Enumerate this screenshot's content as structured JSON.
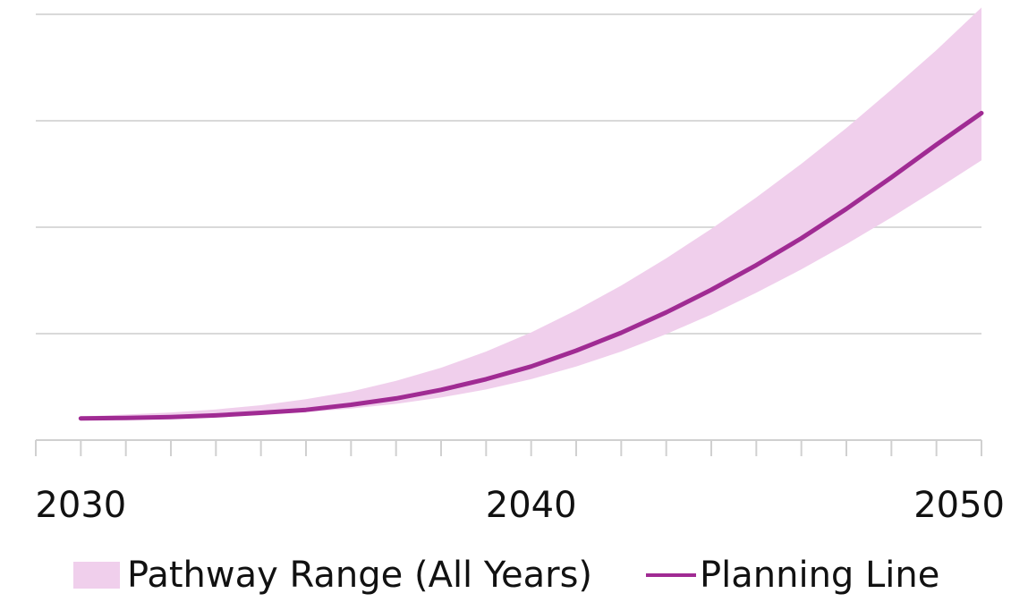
{
  "chart_data": {
    "type": "area",
    "title": "",
    "xlabel": "",
    "ylabel": "",
    "xlim": [
      2029,
      2050
    ],
    "ylim": [
      0,
      100
    ],
    "grid": true,
    "x_ticks": [
      2030,
      2040,
      2050
    ],
    "legend_position": "bottom",
    "x": [
      2030,
      2031,
      2032,
      2033,
      2034,
      2035,
      2036,
      2037,
      2038,
      2039,
      2040,
      2041,
      2042,
      2043,
      2044,
      2045,
      2046,
      2047,
      2048,
      2049,
      2050
    ],
    "series": [
      {
        "name": "Pathway Range (All Years)",
        "type": "band",
        "color": "#f0cfec",
        "lower": [
          5.0,
          5.1,
          5.3,
          5.6,
          6.0,
          6.6,
          7.4,
          8.5,
          10.0,
          11.9,
          14.3,
          17.3,
          20.8,
          24.9,
          29.5,
          34.6,
          40.1,
          46.0,
          52.3,
          58.9,
          65.7
        ],
        "upper": [
          5.5,
          6.0,
          6.5,
          7.2,
          8.2,
          9.6,
          11.4,
          13.9,
          17.0,
          20.8,
          25.3,
          30.5,
          36.3,
          42.7,
          49.6,
          57.0,
          64.9,
          73.3,
          82.3,
          91.6,
          101.6
        ]
      },
      {
        "name": "Planning Line",
        "type": "line",
        "color": "#a02b93",
        "values": [
          5.1,
          5.2,
          5.4,
          5.8,
          6.4,
          7.1,
          8.3,
          9.8,
          11.8,
          14.3,
          17.3,
          21.0,
          25.2,
          30.0,
          35.3,
          41.1,
          47.4,
          54.3,
          61.7,
          69.4,
          76.8
        ]
      }
    ]
  }
}
